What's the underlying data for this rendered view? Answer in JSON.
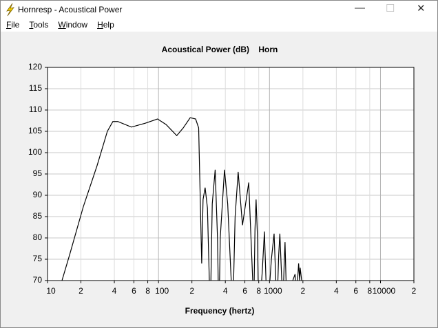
{
  "window": {
    "title": "Hornresp - Acoustical Power",
    "menu": [
      "File",
      "Tools",
      "Window",
      "Help"
    ]
  },
  "chart_data": {
    "type": "line",
    "title": "Acoustical Power (dB)    Horn",
    "x_label": "Frequency (hertz)",
    "x_scale": "log",
    "grid": true,
    "color": "#000000",
    "xlim": [
      10,
      20000
    ],
    "ylim": [
      70,
      120
    ],
    "xticks": [
      10,
      {
        "value": 20,
        "label": "2"
      },
      {
        "value": 40,
        "label": "4"
      },
      {
        "value": 60,
        "label": "6"
      },
      {
        "value": 80,
        "label": "8"
      },
      100,
      {
        "value": 200,
        "label": "2"
      },
      {
        "value": 400,
        "label": "4"
      },
      {
        "value": 600,
        "label": "6"
      },
      {
        "value": 800,
        "label": "8"
      },
      1000,
      {
        "value": 2000,
        "label": "2"
      },
      {
        "value": 4000,
        "label": "4"
      },
      {
        "value": 6000,
        "label": "6"
      },
      {
        "value": 8000,
        "label": "8"
      },
      10000,
      {
        "value": 20000,
        "label": "2"
      }
    ],
    "yticks": [
      70,
      75,
      80,
      85,
      90,
      95,
      100,
      105,
      110,
      115,
      120
    ],
    "x": [
      13.5,
      15.8,
      21,
      28,
      34.6,
      38.8,
      43,
      57,
      76,
      98,
      117,
      146,
      167,
      193,
      216,
      230,
      234,
      245,
      252,
      263,
      276,
      287,
      292,
      305,
      324,
      340,
      350,
      360,
      393,
      420,
      452,
      465,
      490,
      522,
      571,
      650,
      706,
      720,
      740,
      757,
      780,
      800,
      860,
      900,
      930,
      960,
      1040,
      1100,
      1140,
      1170,
      1210,
      1240,
      1290,
      1320,
      1360,
      1380,
      1410,
      1440,
      1620,
      1700,
      1750,
      1830,
      1870,
      1890,
      1950,
      2000
    ],
    "values": [
      70,
      76,
      87.3,
      97,
      105,
      107.3,
      107.3,
      106,
      106.9,
      107.9,
      106.6,
      104,
      105.8,
      108.2,
      107.9,
      105.8,
      97,
      74,
      89,
      91.8,
      87,
      70,
      60,
      88,
      96,
      80,
      60,
      80,
      96,
      88,
      70,
      60,
      85,
      95.5,
      83,
      93,
      70,
      62,
      82,
      89,
      80,
      60,
      72,
      81.5,
      70,
      62,
      75,
      81,
      70,
      64,
      76,
      81,
      70,
      64,
      75,
      79,
      70,
      60,
      70,
      71.5,
      66,
      74,
      70,
      73,
      70,
      65
    ]
  }
}
